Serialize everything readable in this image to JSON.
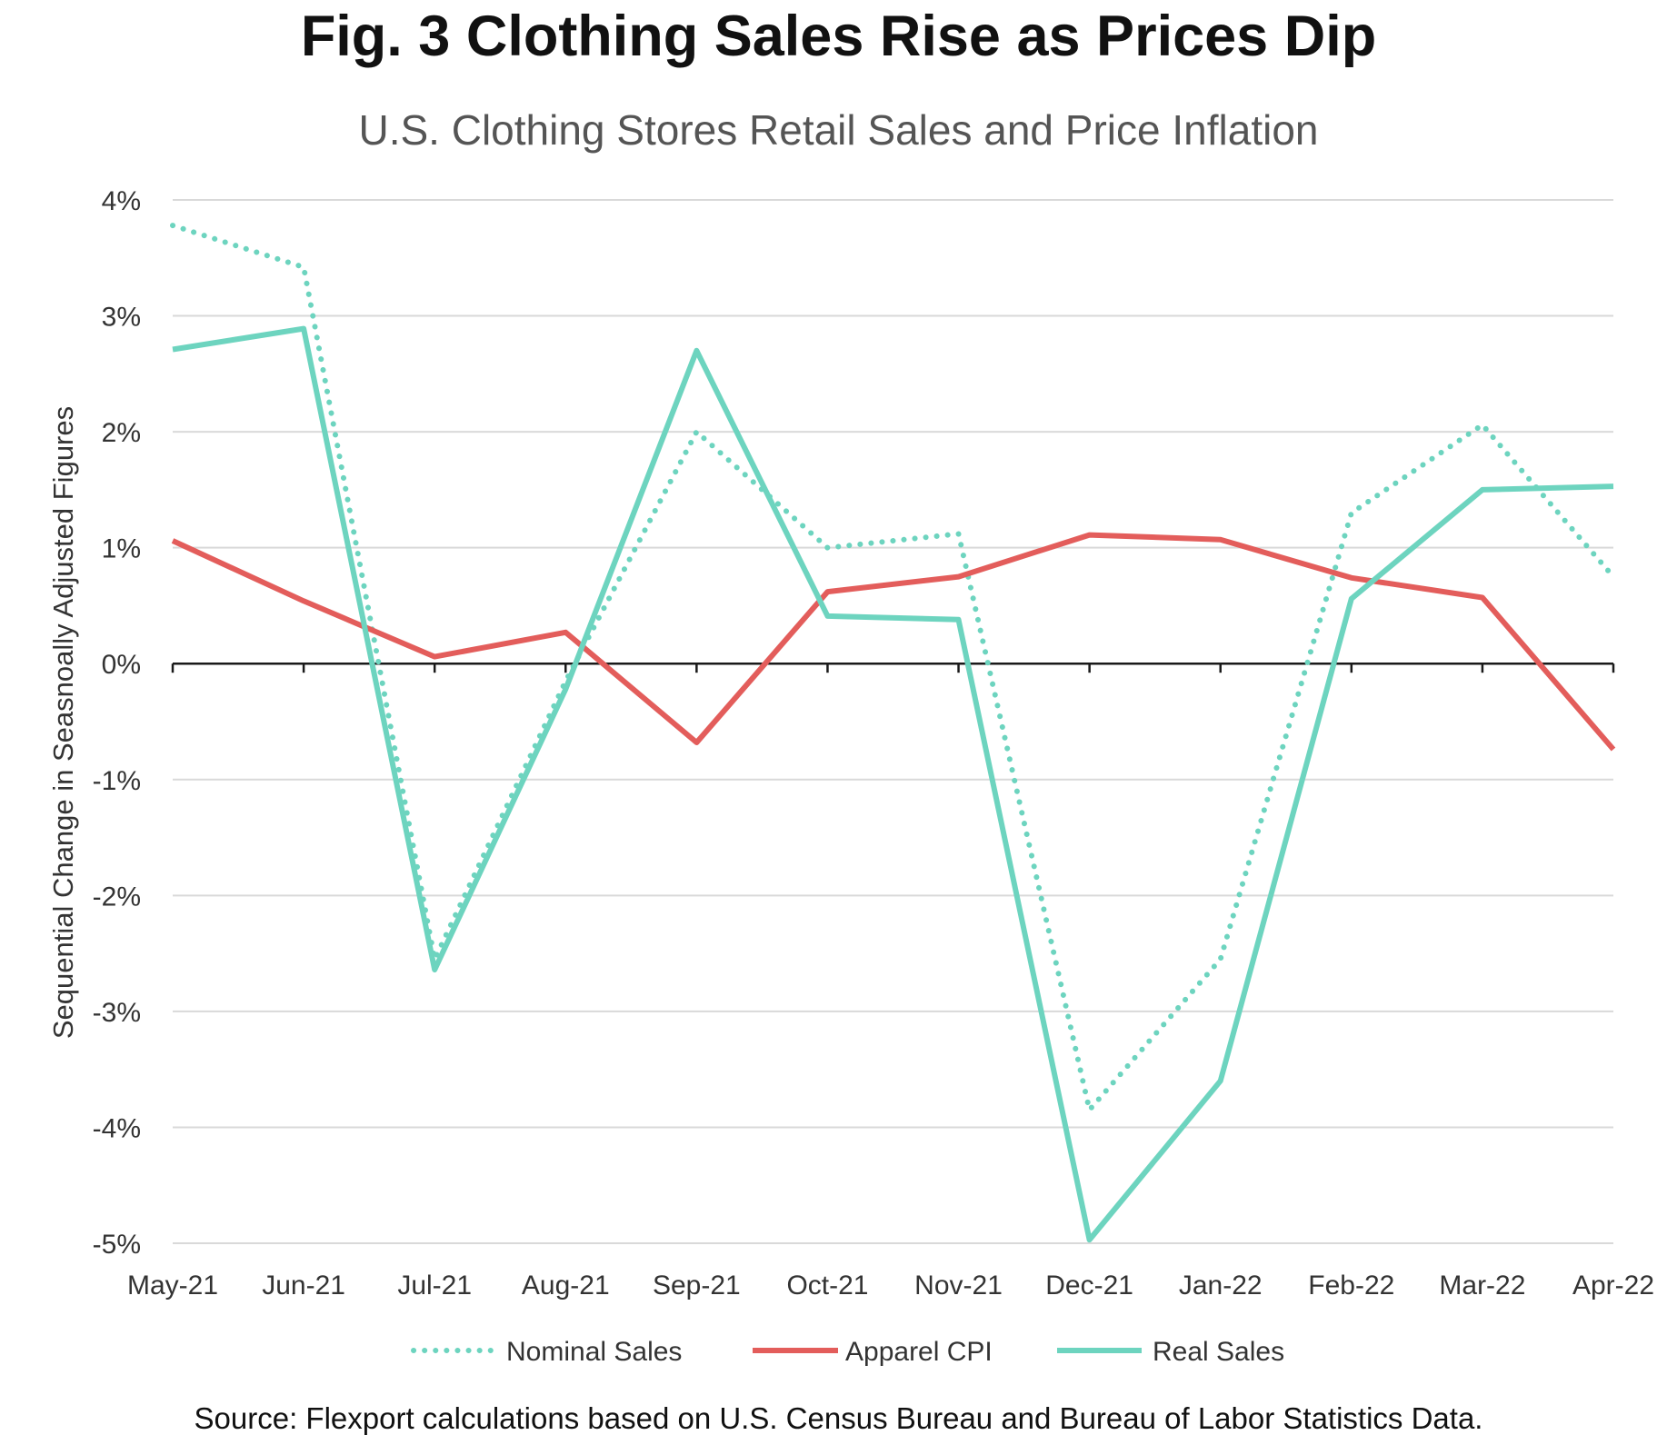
{
  "title": "Fig. 3 Clothing Sales Rise as Prices Dip",
  "subtitle": "U.S. Clothing Stores Retail Sales and Price Inflation",
  "source": "Source: Flexport calculations based on U.S. Census Bureau and Bureau of Labor Statistics Data.",
  "chart_data": {
    "type": "line",
    "title": "Fig. 3 Clothing Sales Rise as Prices Dip",
    "subtitle": "U.S. Clothing Stores Retail Sales and Price Inflation",
    "xlabel": "",
    "ylabel": "Sequential Change in Seasnoally Adjusted Figures",
    "ylim": [
      -5,
      4
    ],
    "yticks": [
      4,
      3,
      2,
      1,
      0,
      -1,
      -2,
      -3,
      -4,
      -5
    ],
    "ytick_labels": [
      "4%",
      "3%",
      "2%",
      "1%",
      "0%",
      "-1%",
      "-2%",
      "-3%",
      "-4%",
      "-5%"
    ],
    "grid": true,
    "legend_position": "bottom",
    "categories": [
      "May-21",
      "Jun-21",
      "Jul-21",
      "Aug-21",
      "Sep-21",
      "Oct-21",
      "Nov-21",
      "Dec-21",
      "Jan-22",
      "Feb-22",
      "Mar-22",
      "Apr-22"
    ],
    "series": [
      {
        "name": "Nominal Sales",
        "style": "dotted",
        "color": "#6dd4bf",
        "values": [
          3.78,
          3.42,
          -2.55,
          -0.15,
          2.0,
          1.0,
          1.12,
          -3.85,
          -2.55,
          1.3,
          2.06,
          0.75
        ]
      },
      {
        "name": "Apparel CPI",
        "style": "solid",
        "color": "#e35d5b",
        "values": [
          1.06,
          0.54,
          0.06,
          0.27,
          -0.68,
          0.62,
          0.75,
          1.11,
          1.07,
          0.74,
          0.57,
          -0.74
        ]
      },
      {
        "name": "Real Sales",
        "style": "solid",
        "color": "#6dd4bf",
        "values": [
          2.71,
          2.89,
          -2.64,
          -0.22,
          2.7,
          0.41,
          0.38,
          -4.97,
          -3.6,
          0.56,
          1.5,
          1.53
        ]
      }
    ]
  }
}
